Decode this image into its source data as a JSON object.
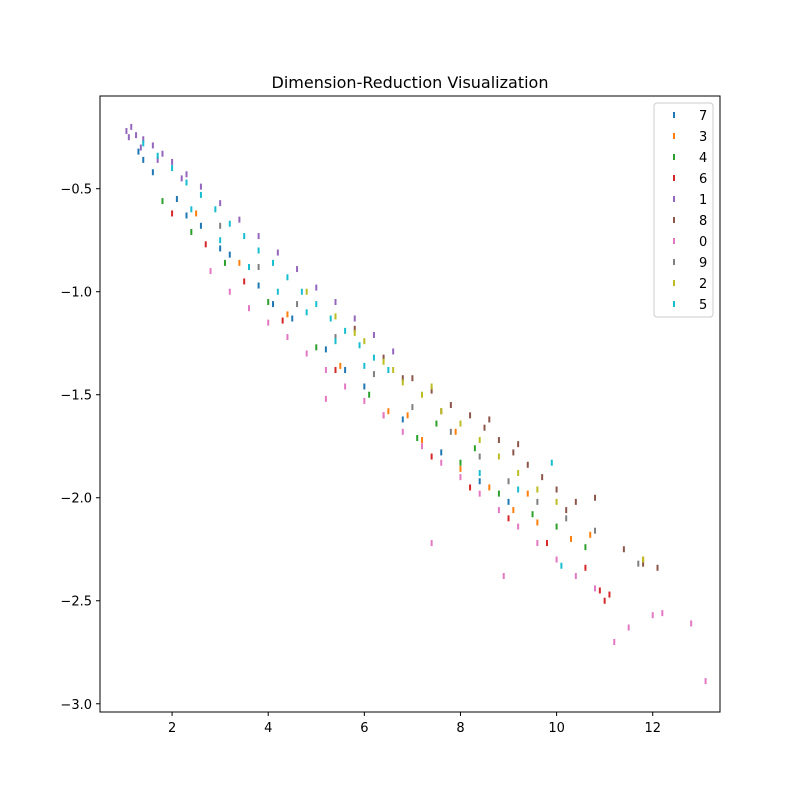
{
  "chart_data": {
    "type": "scatter",
    "title": "Dimension-Reduction Visualization",
    "xlabel": "",
    "ylabel": "",
    "xlim": [
      0.5,
      13.4
    ],
    "ylim": [
      -3.04,
      -0.05
    ],
    "x_ticks": [
      2,
      4,
      6,
      8,
      10,
      12
    ],
    "x_tick_labels": [
      "2",
      "4",
      "6",
      "8",
      "10",
      "12"
    ],
    "y_ticks": [
      -0.5,
      -1.0,
      -1.5,
      -2.0,
      -2.5,
      -3.0
    ],
    "y_tick_labels": [
      "−0.5",
      "−1.0",
      "−1.5",
      "−2.0",
      "−2.5",
      "−3.0"
    ],
    "grid": false,
    "marker": "vertical-line",
    "legend": {
      "position": "top-right"
    },
    "series": [
      {
        "name": "7",
        "color": "#1f77b4",
        "points": [
          [
            1.3,
            -0.32
          ],
          [
            1.6,
            -0.42
          ],
          [
            2.1,
            -0.55
          ],
          [
            2.6,
            -0.68
          ],
          [
            3.2,
            -0.82
          ],
          [
            3.8,
            -0.97
          ],
          [
            4.5,
            -1.13
          ],
          [
            5.2,
            -1.28
          ],
          [
            6.0,
            -1.46
          ],
          [
            6.8,
            -1.62
          ],
          [
            7.6,
            -1.78
          ],
          [
            8.4,
            -1.92
          ],
          [
            9.0,
            -2.02
          ],
          [
            1.4,
            -0.36
          ],
          [
            2.3,
            -0.63
          ],
          [
            3.0,
            -0.79
          ],
          [
            4.1,
            -1.06
          ],
          [
            5.6,
            -1.38
          ]
        ]
      },
      {
        "name": "3",
        "color": "#ff7f0e",
        "points": [
          [
            2.5,
            -0.62
          ],
          [
            3.4,
            -0.86
          ],
          [
            4.4,
            -1.11
          ],
          [
            5.5,
            -1.36
          ],
          [
            6.5,
            -1.58
          ],
          [
            7.2,
            -1.72
          ],
          [
            8.0,
            -1.86
          ],
          [
            8.6,
            -1.95
          ],
          [
            9.1,
            -2.06
          ],
          [
            9.6,
            -2.12
          ],
          [
            10.3,
            -2.2
          ],
          [
            11.8,
            -2.3
          ],
          [
            10.7,
            -2.18
          ],
          [
            7.9,
            -1.68
          ],
          [
            6.9,
            -1.6
          ],
          [
            9.4,
            -1.98
          ]
        ]
      },
      {
        "name": "4",
        "color": "#2ca02c",
        "points": [
          [
            1.8,
            -0.56
          ],
          [
            2.4,
            -0.71
          ],
          [
            3.1,
            -0.86
          ],
          [
            4.0,
            -1.05
          ],
          [
            5.0,
            -1.27
          ],
          [
            6.1,
            -1.5
          ],
          [
            7.1,
            -1.71
          ],
          [
            8.0,
            -1.83
          ],
          [
            8.8,
            -1.98
          ],
          [
            9.5,
            -2.08
          ],
          [
            10.0,
            -2.14
          ],
          [
            10.6,
            -2.24
          ],
          [
            8.3,
            -1.76
          ],
          [
            7.5,
            -1.64
          ]
        ]
      },
      {
        "name": "6",
        "color": "#d62728",
        "points": [
          [
            2.0,
            -0.62
          ],
          [
            2.7,
            -0.77
          ],
          [
            3.5,
            -0.95
          ],
          [
            4.3,
            -1.14
          ],
          [
            5.4,
            -1.38
          ],
          [
            6.4,
            -1.6
          ],
          [
            7.4,
            -1.8
          ],
          [
            8.2,
            -1.95
          ],
          [
            9.0,
            -2.1
          ],
          [
            9.8,
            -2.22
          ],
          [
            10.6,
            -2.34
          ],
          [
            11.1,
            -2.47
          ],
          [
            11.0,
            -2.5
          ],
          [
            10.9,
            -2.45
          ]
        ]
      },
      {
        "name": "1",
        "color": "#9467bd",
        "points": [
          [
            1.05,
            -0.22
          ],
          [
            1.15,
            -0.2
          ],
          [
            1.25,
            -0.24
          ],
          [
            1.4,
            -0.26
          ],
          [
            1.6,
            -0.29
          ],
          [
            1.8,
            -0.33
          ],
          [
            2.0,
            -0.37
          ],
          [
            2.3,
            -0.43
          ],
          [
            2.6,
            -0.49
          ],
          [
            3.0,
            -0.57
          ],
          [
            3.4,
            -0.65
          ],
          [
            3.8,
            -0.73
          ],
          [
            4.2,
            -0.81
          ],
          [
            4.6,
            -0.89
          ],
          [
            5.0,
            -0.98
          ],
          [
            5.4,
            -1.05
          ],
          [
            5.8,
            -1.13
          ],
          [
            6.2,
            -1.21
          ],
          [
            6.6,
            -1.29
          ],
          [
            1.1,
            -0.25
          ],
          [
            1.35,
            -0.3
          ],
          [
            1.7,
            -0.36
          ],
          [
            2.2,
            -0.45
          ]
        ]
      },
      {
        "name": "8",
        "color": "#8c564b",
        "points": [
          [
            5.8,
            -1.18
          ],
          [
            6.4,
            -1.32
          ],
          [
            7.0,
            -1.42
          ],
          [
            7.4,
            -1.48
          ],
          [
            7.8,
            -1.55
          ],
          [
            8.2,
            -1.6
          ],
          [
            8.5,
            -1.66
          ],
          [
            8.8,
            -1.72
          ],
          [
            9.1,
            -1.78
          ],
          [
            9.4,
            -1.84
          ],
          [
            9.7,
            -1.9
          ],
          [
            10.0,
            -1.96
          ],
          [
            10.4,
            -2.02
          ],
          [
            10.8,
            -2.0
          ],
          [
            11.4,
            -2.25
          ],
          [
            11.8,
            -2.32
          ],
          [
            12.1,
            -2.34
          ],
          [
            8.6,
            -1.62
          ],
          [
            9.2,
            -1.74
          ],
          [
            7.6,
            -1.58
          ],
          [
            6.8,
            -1.42
          ],
          [
            10.2,
            -2.06
          ]
        ]
      },
      {
        "name": "0",
        "color": "#e377c2",
        "points": [
          [
            2.8,
            -0.9
          ],
          [
            3.2,
            -1.0
          ],
          [
            3.6,
            -1.08
          ],
          [
            4.0,
            -1.15
          ],
          [
            4.4,
            -1.22
          ],
          [
            4.8,
            -1.3
          ],
          [
            5.2,
            -1.38
          ],
          [
            5.6,
            -1.46
          ],
          [
            6.0,
            -1.53
          ],
          [
            6.4,
            -1.6
          ],
          [
            6.8,
            -1.68
          ],
          [
            7.2,
            -1.75
          ],
          [
            7.6,
            -1.83
          ],
          [
            8.0,
            -1.9
          ],
          [
            8.4,
            -1.98
          ],
          [
            8.8,
            -2.06
          ],
          [
            9.2,
            -2.14
          ],
          [
            9.6,
            -2.22
          ],
          [
            10.0,
            -2.3
          ],
          [
            10.4,
            -2.38
          ],
          [
            10.8,
            -2.44
          ],
          [
            11.2,
            -2.7
          ],
          [
            11.5,
            -2.63
          ],
          [
            12.0,
            -2.57
          ],
          [
            12.2,
            -2.56
          ],
          [
            12.8,
            -2.61
          ],
          [
            13.1,
            -2.89
          ],
          [
            7.4,
            -2.22
          ],
          [
            8.9,
            -2.38
          ],
          [
            5.2,
            -1.52
          ]
        ]
      },
      {
        "name": "9",
        "color": "#7f7f7f",
        "points": [
          [
            3.0,
            -0.68
          ],
          [
            3.8,
            -0.88
          ],
          [
            4.6,
            -1.06
          ],
          [
            5.4,
            -1.22
          ],
          [
            6.2,
            -1.4
          ],
          [
            7.0,
            -1.56
          ],
          [
            7.8,
            -1.68
          ],
          [
            8.4,
            -1.8
          ],
          [
            9.0,
            -1.92
          ],
          [
            9.6,
            -2.02
          ],
          [
            10.2,
            -2.1
          ],
          [
            10.8,
            -2.16
          ],
          [
            11.7,
            -2.32
          ]
        ]
      },
      {
        "name": "2",
        "color": "#bcbd22",
        "points": [
          [
            4.8,
            -1.0
          ],
          [
            5.4,
            -1.12
          ],
          [
            6.0,
            -1.24
          ],
          [
            6.4,
            -1.34
          ],
          [
            6.8,
            -1.44
          ],
          [
            7.2,
            -1.5
          ],
          [
            7.6,
            -1.58
          ],
          [
            8.0,
            -1.64
          ],
          [
            8.4,
            -1.72
          ],
          [
            8.8,
            -1.8
          ],
          [
            9.2,
            -1.88
          ],
          [
            9.6,
            -1.96
          ],
          [
            10.0,
            -2.02
          ],
          [
            5.8,
            -1.2
          ],
          [
            6.6,
            -1.38
          ],
          [
            7.4,
            -1.46
          ],
          [
            11.8,
            -2.3
          ]
        ]
      },
      {
        "name": "5",
        "color": "#17becf",
        "points": [
          [
            1.4,
            -0.28
          ],
          [
            1.7,
            -0.34
          ],
          [
            2.0,
            -0.4
          ],
          [
            2.3,
            -0.47
          ],
          [
            2.6,
            -0.53
          ],
          [
            2.9,
            -0.6
          ],
          [
            3.2,
            -0.67
          ],
          [
            3.5,
            -0.73
          ],
          [
            3.8,
            -0.8
          ],
          [
            4.1,
            -0.86
          ],
          [
            4.4,
            -0.93
          ],
          [
            4.7,
            -1.0
          ],
          [
            5.0,
            -1.06
          ],
          [
            5.3,
            -1.13
          ],
          [
            5.6,
            -1.19
          ],
          [
            5.9,
            -1.26
          ],
          [
            6.2,
            -1.32
          ],
          [
            6.5,
            -1.38
          ],
          [
            2.4,
            -0.6
          ],
          [
            3.0,
            -0.75
          ],
          [
            3.6,
            -0.88
          ],
          [
            4.2,
            -1.0
          ],
          [
            4.8,
            -1.1
          ],
          [
            5.4,
            -1.24
          ],
          [
            6.0,
            -1.36
          ],
          [
            8.4,
            -1.88
          ],
          [
            9.2,
            -1.96
          ],
          [
            9.9,
            -1.83
          ],
          [
            10.1,
            -2.33
          ]
        ]
      }
    ]
  }
}
